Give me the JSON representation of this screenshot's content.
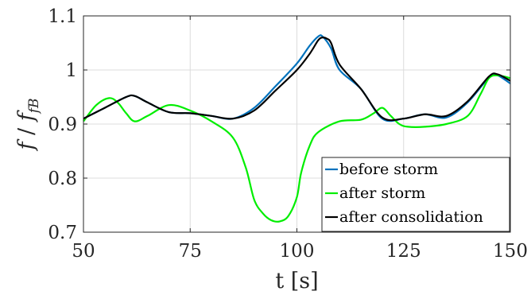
{
  "chart_data": {
    "type": "line",
    "xlabel": "t [s]",
    "ylabel_parts": {
      "f1": "f",
      "slash": " / ",
      "f2": "f",
      "sub": "fB"
    },
    "xlim": [
      50,
      150
    ],
    "ylim": [
      0.7,
      1.1
    ],
    "xticks": [
      50,
      75,
      100,
      125,
      150
    ],
    "xtick_labels": [
      "50",
      "75",
      "100",
      "125",
      "150"
    ],
    "yticks": [
      0.7,
      0.8,
      0.9,
      1.0,
      1.1
    ],
    "ytick_labels": [
      "0.7",
      "0.8",
      "0.9",
      "1",
      "1.1"
    ],
    "grid": true,
    "legend_position": "bottom-right",
    "series": [
      {
        "name": "before storm",
        "color": "#0072BD",
        "x": [
          50,
          55,
          60,
          62,
          65,
          70,
          75,
          80,
          85,
          90,
          95,
          100,
          103,
          105,
          106,
          108,
          110,
          115,
          120,
          125,
          130,
          135,
          140,
          145,
          147,
          150
        ],
        "y": [
          0.91,
          0.93,
          0.95,
          0.952,
          0.94,
          0.922,
          0.92,
          0.915,
          0.91,
          0.93,
          0.97,
          1.012,
          1.045,
          1.062,
          1.062,
          1.04,
          1.0,
          0.965,
          0.91,
          0.91,
          0.918,
          0.912,
          0.94,
          0.986,
          0.99,
          0.975
        ]
      },
      {
        "name": "after storm",
        "color": "#00EE00",
        "x": [
          50,
          53,
          56,
          58,
          60,
          62,
          65,
          70,
          75,
          80,
          85,
          88,
          90,
          92,
          94,
          96,
          98,
          100,
          101,
          103,
          105,
          110,
          115,
          118,
          120,
          122,
          124,
          126,
          130,
          135,
          140,
          143,
          145,
          147,
          150
        ],
        "y": [
          0.905,
          0.935,
          0.948,
          0.94,
          0.92,
          0.905,
          0.915,
          0.935,
          0.925,
          0.905,
          0.875,
          0.82,
          0.76,
          0.735,
          0.722,
          0.72,
          0.73,
          0.765,
          0.81,
          0.86,
          0.885,
          0.905,
          0.908,
          0.92,
          0.93,
          0.915,
          0.9,
          0.895,
          0.895,
          0.9,
          0.915,
          0.955,
          0.985,
          0.99,
          0.985
        ]
      },
      {
        "name": "after consolidation",
        "color": "#000000",
        "x": [
          50,
          55,
          60,
          62,
          65,
          70,
          75,
          80,
          85,
          90,
          95,
          100,
          103,
          105,
          106,
          107,
          108,
          110,
          115,
          120,
          125,
          130,
          135,
          140,
          145,
          147,
          150
        ],
        "y": [
          0.91,
          0.93,
          0.95,
          0.952,
          0.94,
          0.922,
          0.92,
          0.915,
          0.91,
          0.925,
          0.962,
          1.0,
          1.03,
          1.055,
          1.06,
          1.058,
          1.05,
          1.01,
          0.965,
          0.912,
          0.91,
          0.918,
          0.915,
          0.942,
          0.988,
          0.992,
          0.98
        ]
      }
    ]
  }
}
